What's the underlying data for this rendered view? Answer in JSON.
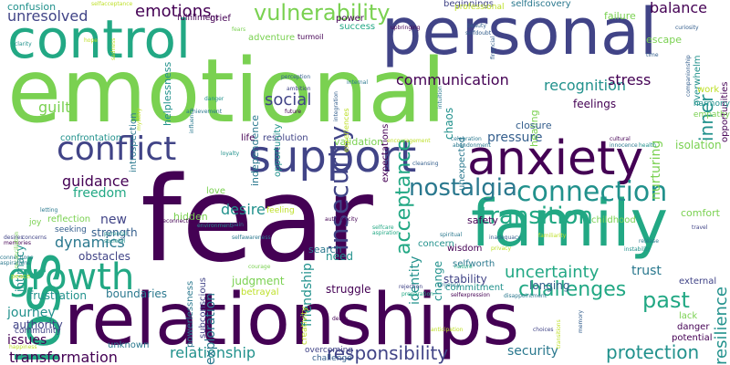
{
  "colors": {
    "dark_purple": "#440154",
    "indigo": "#414487",
    "slate_blue": "#355f8d",
    "teal_blue": "#2a788e",
    "teal": "#21918c",
    "sea_green": "#22a884",
    "green": "#44bf70",
    "light_green": "#7ad151",
    "yellow_green": "#bddf26",
    "yellow": "#fde725"
  },
  "words": [
    "fear",
    "emotional",
    "relationships",
    "personal",
    "control",
    "family",
    "support",
    "anxiety",
    "loss",
    "growth",
    "connection",
    "conflict",
    "vulnerability",
    "transition",
    "nostalgia",
    "insecurity",
    "communication",
    "recognition",
    "acceptance",
    "protection",
    "responsibility",
    "transformation",
    "relationship",
    "uncertainty",
    "challenges",
    "past",
    "resilience",
    "emotions",
    "unresolved",
    "social",
    "balance",
    "stress",
    "inner",
    "guidance",
    "desire",
    "friendship",
    "exploration",
    "identity",
    "dynamics",
    "growth2",
    "freedom",
    "guilt",
    "confusion",
    "security",
    "trust",
    "pressure",
    "feelings",
    "nurturing",
    "isolation",
    "chaos",
    "change",
    "longing",
    "stability",
    "judgment",
    "struggle",
    "need",
    "journey",
    "issues",
    "authority",
    "boundaries",
    "frustration",
    "obstacles",
    "new",
    "strength",
    "intimacy",
    "loss2",
    "hidden",
    "search",
    "safety",
    "comfort",
    "healing",
    "closure",
    "escape",
    "failure",
    "beginnings",
    "selfdiscovery",
    "helplessness",
    "independence",
    "overwhelm",
    "validation",
    "unexpected",
    "expectations",
    "opportunities",
    "success",
    "power",
    "grief",
    "adventure",
    "fulfillment",
    "professional",
    "introspection",
    "reflection",
    "dependence",
    "subconscious",
    "powerlessness",
    "betrayal",
    "love",
    "life",
    "resolution",
    "confrontation",
    "opportunity",
    "concern",
    "wisdom",
    "selfworth",
    "commitment",
    "childhood",
    "external",
    "lack",
    "danger",
    "potential",
    "work",
    "harmony",
    "empathy",
    "unknown",
    "community",
    "creativity",
    "challenge",
    "overcoming",
    "joy",
    "seeking",
    "letting",
    "connections",
    "memories",
    "reconciliation",
    "peace",
    "aspirations",
    "happiness",
    "companionship",
    "curiosity",
    "selfacceptance",
    "turmoil",
    "reconnection",
    "resentment",
    "loyalty",
    "experiences",
    "encouragement",
    "celebration",
    "abandonment",
    "innocence",
    "health",
    "cultural",
    "time",
    "fears",
    "clarity",
    "cleansing",
    "privacy",
    "inadequacy",
    "spiritual",
    "nature",
    "rejection",
    "preparation",
    "selfexpression",
    "disappointment",
    "anticipation",
    "choices",
    "memory",
    "transitions",
    "death",
    "authenticity",
    "selfcare",
    "aspiration",
    "familiarity",
    "travel",
    "instability",
    "release",
    "achievement",
    "future",
    "internal",
    "intuition",
    "ambition",
    "danger2",
    "influence",
    "perception",
    "beauty",
    "selfdoubt",
    "upbringing",
    "integration",
    "selfawareness",
    "loss3",
    "pain",
    "parental",
    "societal",
    "desires",
    "concerns",
    "courage",
    "urgency",
    "financial",
    "environment",
    "feeling",
    "reflection2",
    "hope",
    "sadness",
    "mystery"
  ]
}
